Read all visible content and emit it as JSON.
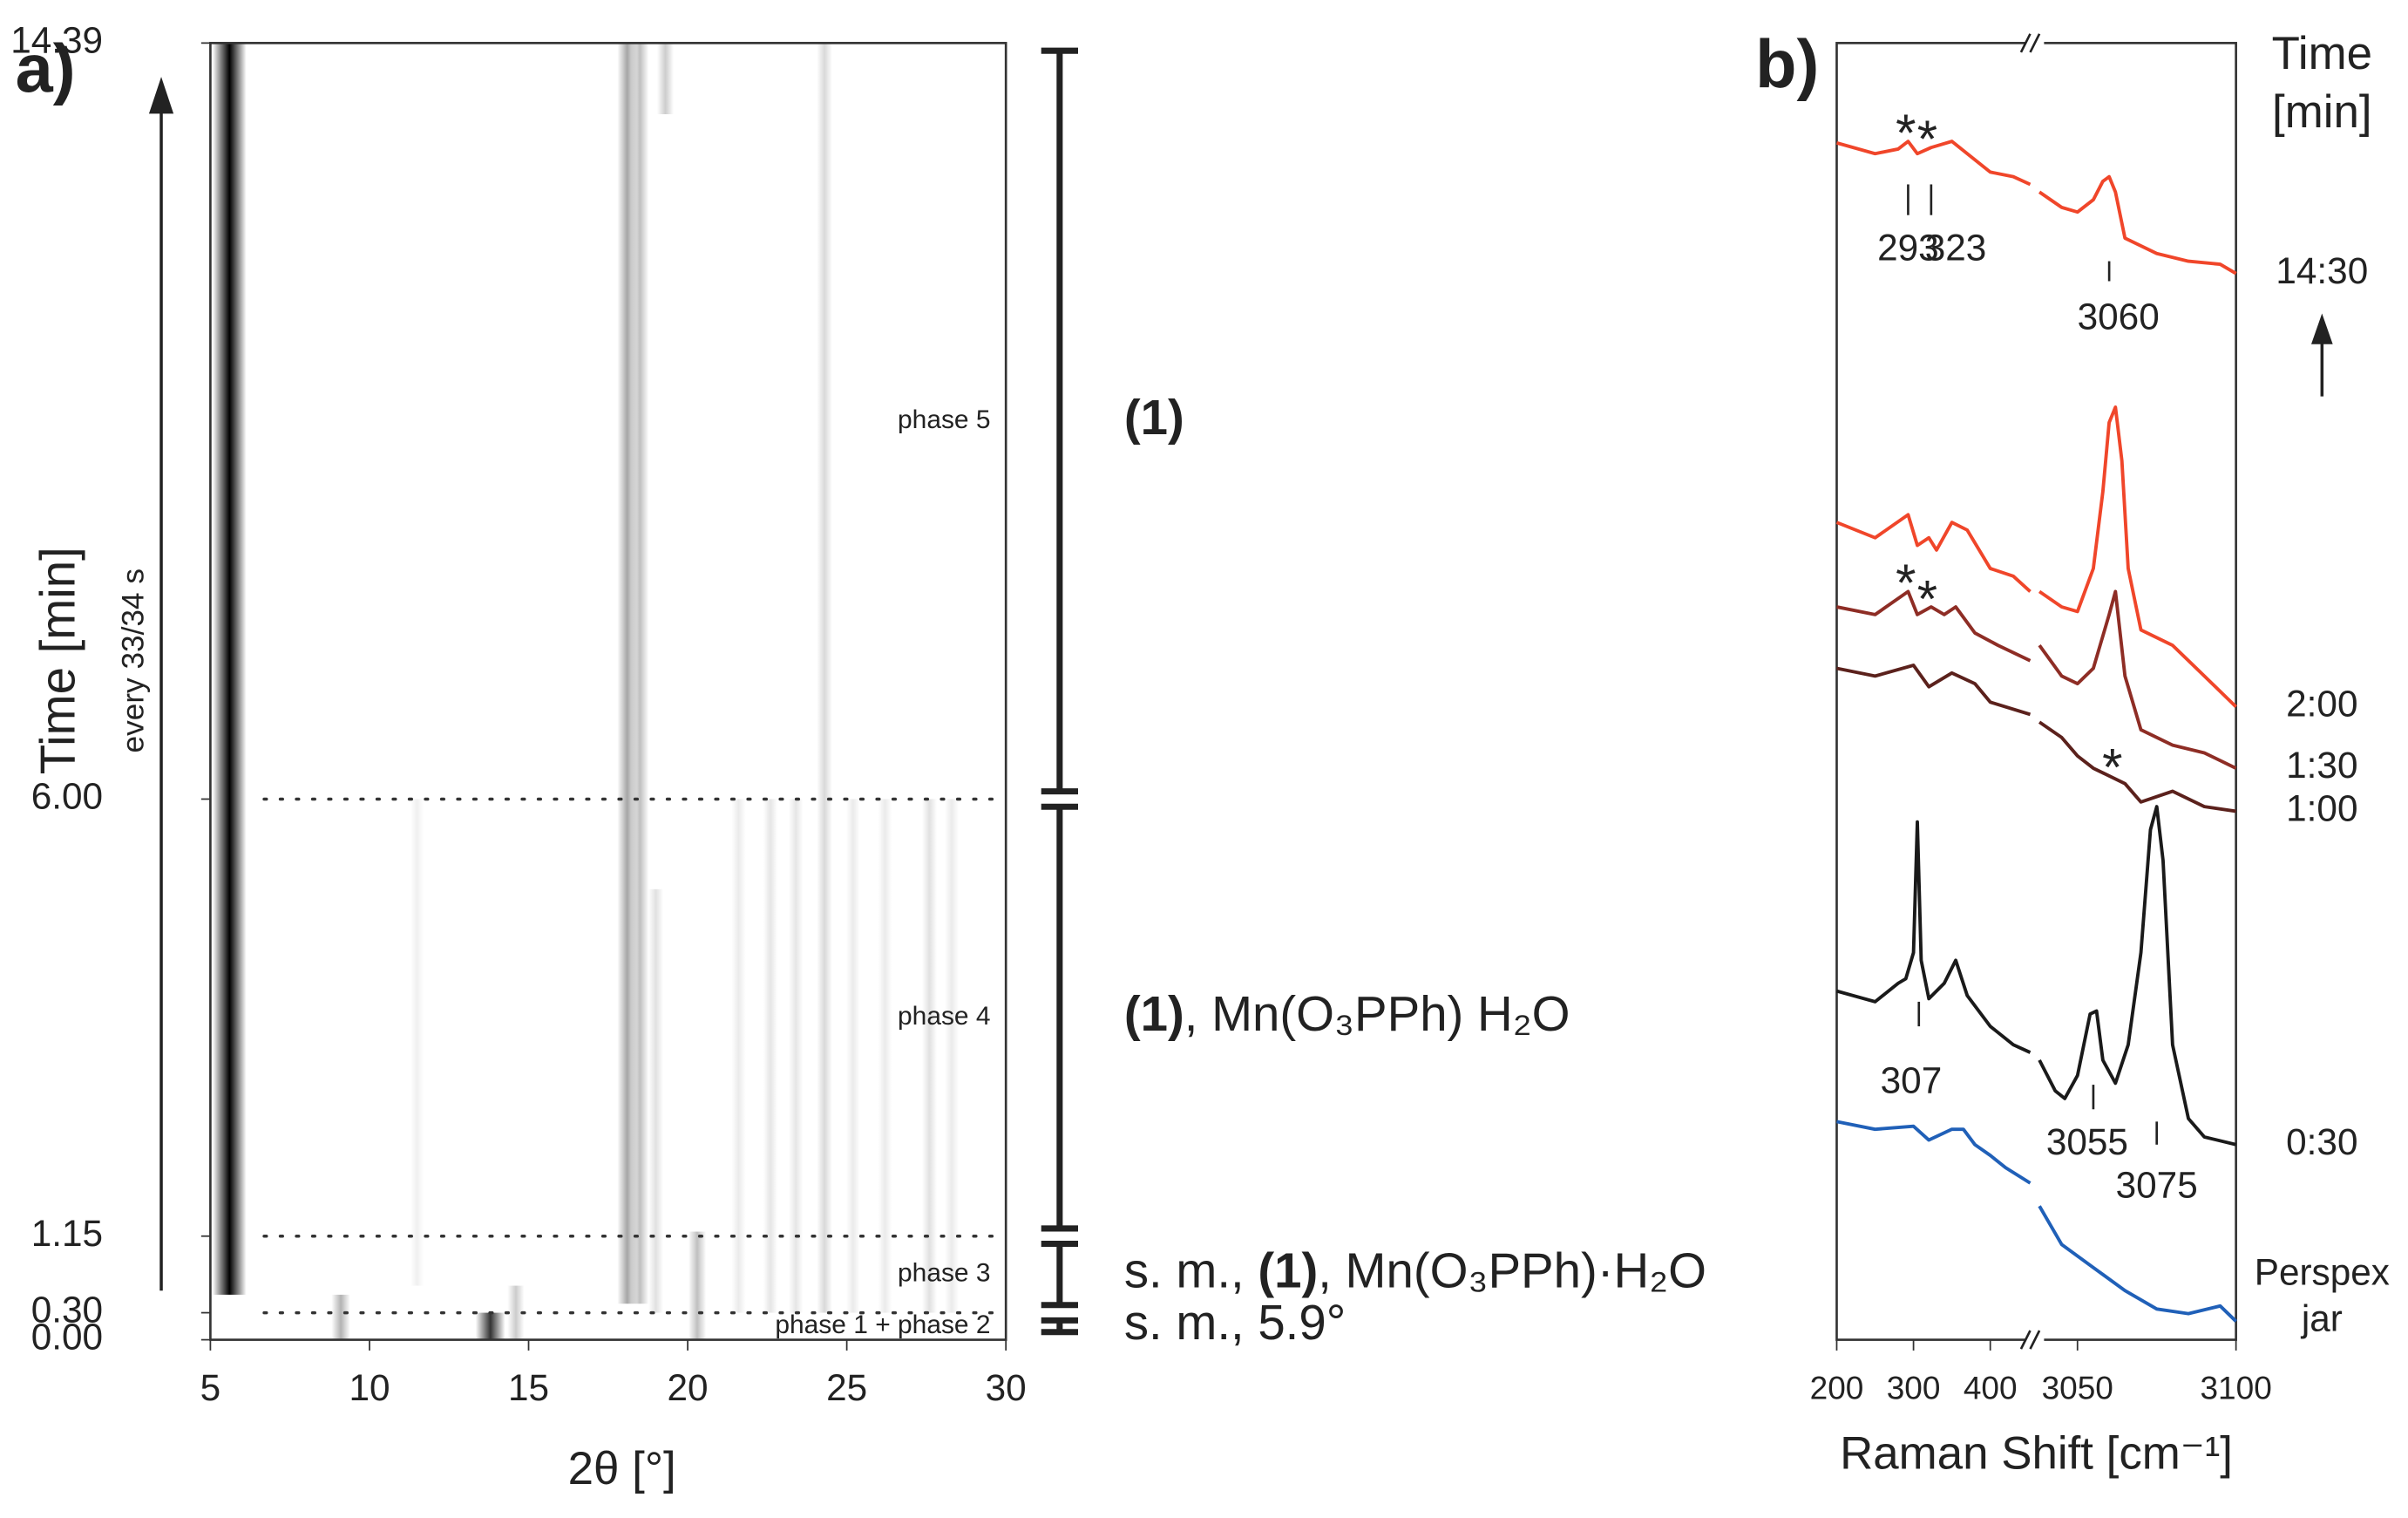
{
  "chart_data": [
    {
      "type": "phase-map",
      "panel_label": "a)",
      "xlabel": "2θ [°]",
      "ylabel": "Time [min]",
      "ylabel_note": "every 33/34 s",
      "xlim": [
        5,
        30
      ],
      "xticks": [
        5,
        10,
        15,
        20,
        25,
        30
      ],
      "ylim": [
        0,
        14.39
      ],
      "yticks": [
        {
          "value": 0,
          "label": "0.00"
        },
        {
          "value": 0.3,
          "label": "0.30"
        },
        1.15,
        {
          "value": 6,
          "label": "6.00"
        },
        14.39
      ],
      "grid": "dotted",
      "color": "#111111",
      "reflections": [
        {
          "position": 5.6,
          "from": 0.5,
          "to": 14.39,
          "intensity": 1.0
        },
        {
          "position": 9.1,
          "from": 0,
          "to": 0.5,
          "intensity": 0.3
        },
        {
          "position": 11.5,
          "from": 0.6,
          "to": 6,
          "intensity": 0.06
        },
        {
          "position": 13.8,
          "from": 0,
          "to": 0.3,
          "intensity": 0.8
        },
        {
          "position": 14.6,
          "from": 0,
          "to": 0.6,
          "intensity": 0.2
        },
        {
          "position": 18.1,
          "from": 0.4,
          "to": 14.39,
          "intensity": 0.35
        },
        {
          "position": 18.5,
          "from": 0.4,
          "to": 14.39,
          "intensity": 0.25
        },
        {
          "position": 19.0,
          "from": 0.3,
          "to": 5,
          "intensity": 0.12
        },
        {
          "position": 19.3,
          "from": 13.6,
          "to": 14.39,
          "intensity": 0.2
        },
        {
          "position": 20.3,
          "from": 0,
          "to": 1.2,
          "intensity": 0.25
        },
        {
          "position": 21.6,
          "from": 0.3,
          "to": 6,
          "intensity": 0.08
        },
        {
          "position": 22.6,
          "from": 0.3,
          "to": 6,
          "intensity": 0.1
        },
        {
          "position": 23.4,
          "from": 0.3,
          "to": 6,
          "intensity": 0.1
        },
        {
          "position": 24.3,
          "from": 0.3,
          "to": 14.39,
          "intensity": 0.15
        },
        {
          "position": 25.2,
          "from": 0.3,
          "to": 6,
          "intensity": 0.08
        },
        {
          "position": 26.2,
          "from": 0.3,
          "to": 6,
          "intensity": 0.08
        },
        {
          "position": 27.6,
          "from": 0.3,
          "to": 6,
          "intensity": 0.12
        },
        {
          "position": 28.3,
          "from": 0.3,
          "to": 6,
          "intensity": 0.08
        }
      ],
      "phases": [
        {
          "label": "phase 5",
          "from": 6,
          "to": 14.39,
          "description": [
            {
              "text": "(1)",
              "bold": true
            }
          ]
        },
        {
          "label": "phase 4",
          "from": 1.15,
          "to": 6,
          "description": [
            {
              "text": "(1)",
              "bold": true
            },
            {
              "text": ", Mn(O₃PPh) H₂O",
              "bold": false
            }
          ]
        },
        {
          "label": "phase 3",
          "from": 0.3,
          "to": 1.15,
          "description": [
            {
              "text": "s. m., ",
              "bold": false
            },
            {
              "text": "(1)",
              "bold": true
            },
            {
              "text": ", Mn(O₃PPh)·H₂O",
              "bold": false
            }
          ]
        },
        {
          "label": "phase 1 + phase 2",
          "from": 0,
          "to": 0.3,
          "description": [
            {
              "text": "s. m., 5.9°",
              "bold": false
            }
          ]
        }
      ]
    },
    {
      "type": "line",
      "panel_label": "b)",
      "xlabel": "Raman Shift [cm⁻¹]",
      "legend_title": "Time [min]",
      "x_segments": [
        {
          "xlim": [
            200,
            452
          ],
          "xticks": [
            200,
            300,
            400
          ]
        },
        {
          "xlim": [
            3038,
            3100
          ],
          "xticks": [
            3050,
            3100
          ]
        }
      ],
      "ylim": [
        0,
        844
      ],
      "series": [
        {
          "name": "14:30",
          "color": "#f0462a",
          "x": [
            200,
            250,
            280,
            293,
            305,
            323,
            350,
            370,
            400,
            430,
            452,
            null,
            3038,
            3045,
            3050,
            3055,
            3058,
            3060,
            3062,
            3065,
            3075,
            3085,
            3095,
            3100
          ],
          "values": [
            779,
            772,
            775,
            780,
            772,
            776,
            780,
            772,
            760,
            757,
            752,
            null,
            747,
            737,
            734,
            742,
            754,
            757,
            747,
            717,
            707,
            702,
            700,
            694
          ]
        },
        {
          "name": "2:00",
          "color": "#f0462a",
          "x": [
            200,
            250,
            293,
            305,
            320,
            330,
            350,
            370,
            400,
            430,
            452,
            null,
            3038,
            3045,
            3050,
            3055,
            3058,
            3060,
            3062,
            3064,
            3066,
            3070,
            3080,
            3090,
            3100
          ],
          "values": [
            532,
            522,
            537,
            517,
            522,
            514,
            532,
            527,
            502,
            497,
            487,
            null,
            487,
            477,
            474,
            502,
            552,
            597,
            607,
            572,
            502,
            462,
            452,
            432,
            412
          ]
        },
        {
          "name": "1:30",
          "color": "#8e2d25",
          "x": [
            200,
            250,
            293,
            305,
            323,
            340,
            355,
            380,
            410,
            452,
            null,
            3038,
            3045,
            3050,
            3055,
            3060,
            3062,
            3065,
            3070,
            3080,
            3090,
            3100
          ],
          "values": [
            477,
            472,
            487,
            472,
            477,
            472,
            477,
            460,
            452,
            442,
            null,
            452,
            432,
            427,
            437,
            472,
            487,
            432,
            397,
            387,
            382,
            372
          ]
        },
        {
          "name": "1:00",
          "color": "#5b211c",
          "x": [
            200,
            250,
            300,
            320,
            350,
            380,
            400,
            452,
            null,
            3038,
            3045,
            3050,
            3055,
            3060,
            3065,
            3070,
            3080,
            3090,
            3100
          ],
          "values": [
            437,
            432,
            439,
            425,
            434,
            427,
            415,
            407,
            null,
            402,
            392,
            380,
            372,
            367,
            362,
            350,
            357,
            347,
            344
          ]
        },
        {
          "name": "0:30",
          "color": "#1a1a1a",
          "x": [
            200,
            250,
            280,
            290,
            300,
            305,
            310,
            320,
            340,
            355,
            370,
            400,
            430,
            452,
            null,
            3038,
            3043,
            3046,
            3050,
            3054,
            3056,
            3058,
            3062,
            3066,
            3070,
            3073,
            3075,
            3077,
            3080,
            3085,
            3090,
            3100
          ],
          "values": [
            227,
            220,
            232,
            235,
            252,
            337,
            247,
            222,
            232,
            247,
            224,
            204,
            192,
            187,
            null,
            182,
            162,
            157,
            172,
            212,
            214,
            182,
            167,
            192,
            252,
            332,
            347,
            312,
            192,
            144,
            132,
            127
          ]
        },
        {
          "name": "Perspex jar",
          "color": "#2060b8",
          "x": [
            200,
            250,
            300,
            320,
            350,
            365,
            380,
            400,
            420,
            452,
            null,
            3038,
            3045,
            3055,
            3065,
            3075,
            3085,
            3095,
            3100
          ],
          "values": [
            142,
            137,
            139,
            130,
            137,
            137,
            127,
            120,
            112,
            102,
            null,
            87,
            62,
            47,
            32,
            20,
            17,
            22,
            12
          ]
        }
      ],
      "markers": [
        {
          "text": "*",
          "x": 290,
          "series": 0
        },
        {
          "text": "*",
          "x": 318,
          "series": 0
        },
        {
          "text": "*",
          "x": 290,
          "series": 2
        },
        {
          "text": "*",
          "x": 318,
          "series": 2
        },
        {
          "text": "*",
          "x": 3061,
          "series": 3
        }
      ],
      "peak_labels": [
        {
          "text": "293",
          "x": 293
        },
        {
          "text": "323",
          "x": 323
        },
        {
          "text": "3060",
          "x": 3060
        },
        {
          "text": "307",
          "x": 307
        },
        {
          "text": "3055",
          "x": 3055
        },
        {
          "text": "3075",
          "x": 3075
        }
      ]
    }
  ]
}
